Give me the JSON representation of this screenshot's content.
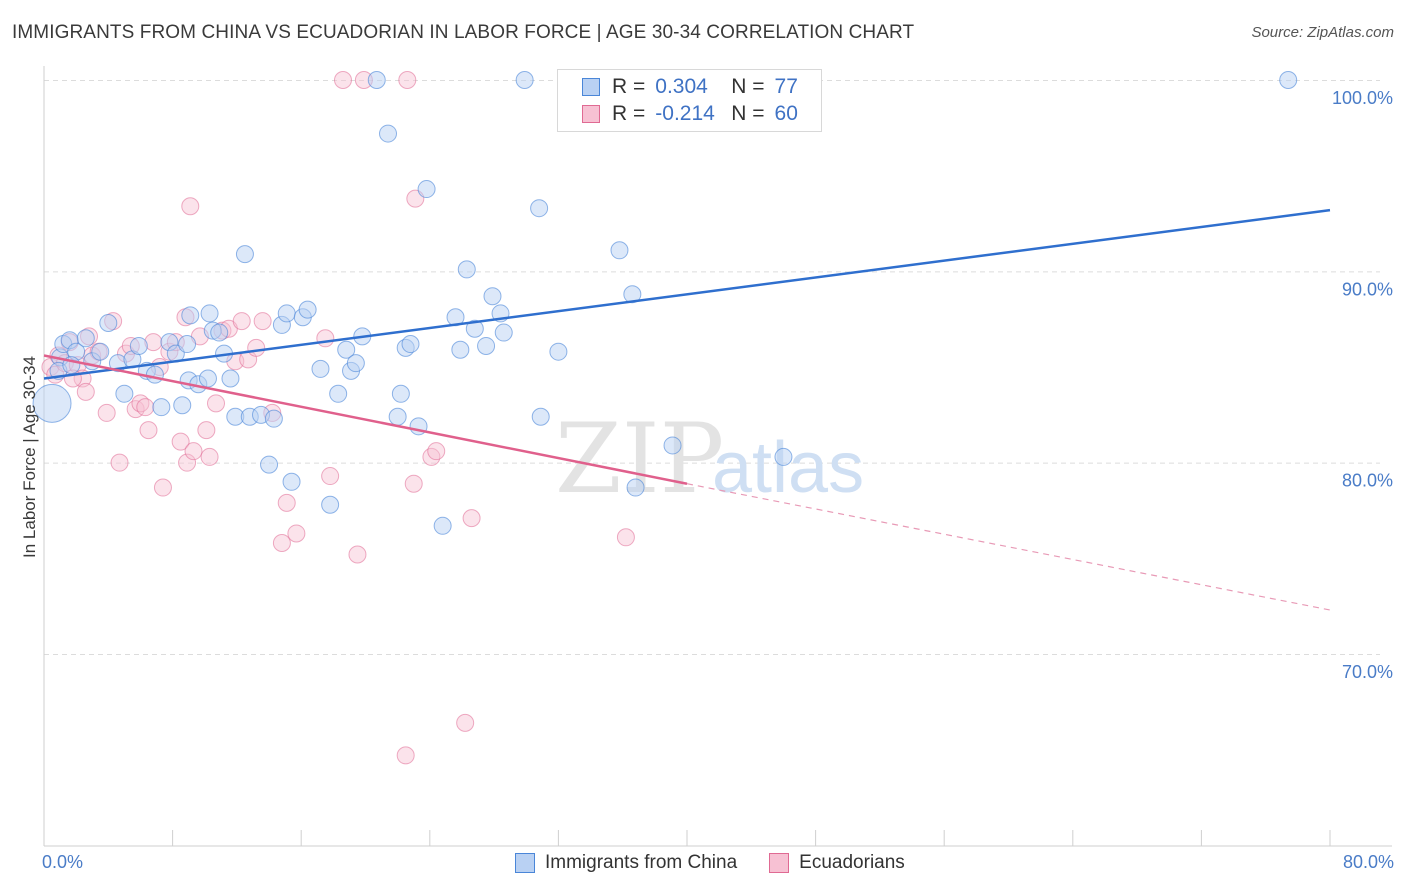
{
  "title": "IMMIGRANTS FROM CHINA VS ECUADORIAN IN LABOR FORCE | AGE 30-34 CORRELATION CHART",
  "source": "Source: ZipAtlas.com",
  "watermark": {
    "zip": "ZIP",
    "atlas": "atlas"
  },
  "legend": {
    "r_label": "R =",
    "n_label": "N =",
    "rows": [
      {
        "r": "0.304",
        "n": "77"
      },
      {
        "r": "-0.214",
        "n": "60"
      }
    ]
  },
  "colors": {
    "china": "#4a86d8",
    "china_fill": "#b9d1f3",
    "ecuador": "#e06a93",
    "ecuador_fill": "#f7c1d3",
    "grid": "#dcdcdc",
    "tick_label": "#4a7cc7"
  },
  "chart_data": {
    "type": "scatter",
    "title": "IMMIGRANTS FROM CHINA VS ECUADORIAN IN LABOR FORCE | AGE 30-34 CORRELATION CHART",
    "xlabel": "",
    "ylabel": "In Labor Force | Age 30-34",
    "xlim": [
      0,
      80
    ],
    "ylim": [
      60,
      104
    ],
    "x_tick_labels": [
      "0.0%",
      "80.0%"
    ],
    "y_ticks": [
      70,
      80,
      90,
      100
    ],
    "y_tick_labels": [
      "70.0%",
      "80.0%",
      "90.0%",
      "100.0%"
    ],
    "grid": true,
    "legend_position": "bottom",
    "series": [
      {
        "name": "Immigrants from China",
        "r": 0.304,
        "n": 77,
        "trend": {
          "x": [
            0,
            80
          ],
          "y": [
            84.4,
            93.2
          ]
        },
        "points": [
          [
            0.5,
            83.1
          ],
          [
            1.0,
            85.5
          ],
          [
            1.2,
            86.2
          ],
          [
            1.6,
            86.4
          ],
          [
            2.0,
            85.8
          ],
          [
            2.6,
            86.5
          ],
          [
            3.0,
            85.3
          ],
          [
            3.5,
            85.8
          ],
          [
            4.0,
            87.3
          ],
          [
            4.6,
            85.2
          ],
          [
            5.0,
            83.6
          ],
          [
            5.5,
            85.4
          ],
          [
            5.9,
            86.1
          ],
          [
            6.4,
            84.8
          ],
          [
            6.9,
            84.6
          ],
          [
            7.3,
            82.9
          ],
          [
            7.8,
            86.3
          ],
          [
            8.2,
            85.7
          ],
          [
            8.6,
            83.0
          ],
          [
            8.9,
            86.2
          ],
          [
            9.0,
            84.3
          ],
          [
            9.1,
            87.7
          ],
          [
            9.6,
            84.1
          ],
          [
            10.2,
            84.4
          ],
          [
            10.3,
            87.8
          ],
          [
            10.5,
            86.9
          ],
          [
            10.9,
            86.8
          ],
          [
            11.2,
            85.7
          ],
          [
            11.6,
            84.4
          ],
          [
            11.9,
            82.4
          ],
          [
            12.5,
            90.9
          ],
          [
            12.8,
            82.4
          ],
          [
            13.5,
            82.5
          ],
          [
            14.0,
            79.9
          ],
          [
            14.3,
            82.3
          ],
          [
            14.8,
            87.2
          ],
          [
            15.1,
            87.8
          ],
          [
            15.4,
            79.0
          ],
          [
            16.1,
            87.6
          ],
          [
            16.4,
            88.0
          ],
          [
            17.2,
            84.9
          ],
          [
            17.8,
            77.8
          ],
          [
            18.3,
            83.6
          ],
          [
            18.8,
            85.9
          ],
          [
            19.1,
            84.8
          ],
          [
            19.4,
            85.2
          ],
          [
            19.8,
            86.6
          ],
          [
            20.7,
            100.0
          ],
          [
            21.4,
            97.2
          ],
          [
            22.0,
            82.4
          ],
          [
            22.2,
            83.6
          ],
          [
            22.5,
            86.0
          ],
          [
            22.8,
            86.2
          ],
          [
            23.3,
            81.9
          ],
          [
            23.8,
            94.3
          ],
          [
            24.8,
            76.7
          ],
          [
            25.6,
            87.6
          ],
          [
            25.9,
            85.9
          ],
          [
            26.3,
            90.1
          ],
          [
            26.8,
            87.0
          ],
          [
            27.5,
            86.1
          ],
          [
            27.9,
            88.7
          ],
          [
            28.4,
            87.8
          ],
          [
            28.6,
            86.8
          ],
          [
            29.9,
            100.0
          ],
          [
            30.8,
            93.3
          ],
          [
            30.9,
            82.4
          ],
          [
            32.0,
            85.8
          ],
          [
            33.1,
            100.0
          ],
          [
            35.8,
            91.1
          ],
          [
            36.6,
            88.8
          ],
          [
            36.8,
            78.7
          ],
          [
            39.1,
            80.9
          ],
          [
            46.0,
            80.3
          ],
          [
            77.4,
            100.0
          ],
          [
            0.9,
            84.8
          ],
          [
            1.7,
            85.1
          ]
        ]
      },
      {
        "name": "Ecuadorians",
        "r": -0.214,
        "n": 60,
        "trend": {
          "x": [
            0,
            40
          ],
          "y": [
            85.6,
            78.9
          ]
        },
        "trend_extension": {
          "x": [
            40,
            80
          ],
          "y": [
            78.9,
            72.3
          ]
        },
        "points": [
          [
            0.4,
            85.0
          ],
          [
            0.7,
            84.6
          ],
          [
            0.9,
            85.6
          ],
          [
            1.3,
            85.2
          ],
          [
            1.6,
            86.3
          ],
          [
            2.1,
            85.1
          ],
          [
            2.4,
            84.4
          ],
          [
            2.6,
            83.7
          ],
          [
            2.8,
            86.6
          ],
          [
            3.0,
            85.6
          ],
          [
            3.4,
            85.8
          ],
          [
            3.9,
            82.6
          ],
          [
            4.3,
            87.4
          ],
          [
            4.7,
            80.0
          ],
          [
            5.1,
            85.7
          ],
          [
            5.4,
            86.1
          ],
          [
            5.7,
            82.8
          ],
          [
            6.0,
            83.1
          ],
          [
            6.3,
            82.9
          ],
          [
            6.5,
            81.7
          ],
          [
            6.8,
            86.3
          ],
          [
            7.2,
            85.0
          ],
          [
            7.4,
            78.7
          ],
          [
            7.8,
            85.8
          ],
          [
            8.2,
            86.3
          ],
          [
            8.5,
            81.1
          ],
          [
            8.8,
            87.6
          ],
          [
            8.9,
            80.0
          ],
          [
            9.1,
            93.4
          ],
          [
            9.3,
            80.6
          ],
          [
            9.7,
            86.6
          ],
          [
            10.1,
            81.7
          ],
          [
            10.3,
            80.3
          ],
          [
            10.7,
            83.1
          ],
          [
            11.1,
            86.9
          ],
          [
            11.5,
            87.0
          ],
          [
            11.9,
            85.3
          ],
          [
            12.3,
            87.4
          ],
          [
            12.7,
            85.4
          ],
          [
            13.2,
            86.0
          ],
          [
            13.6,
            87.4
          ],
          [
            14.2,
            82.6
          ],
          [
            14.8,
            75.8
          ],
          [
            15.1,
            77.9
          ],
          [
            15.7,
            76.3
          ],
          [
            17.5,
            86.5
          ],
          [
            17.8,
            79.3
          ],
          [
            19.5,
            75.2
          ],
          [
            18.6,
            100.0
          ],
          [
            19.9,
            100.0
          ],
          [
            22.6,
            100.0
          ],
          [
            23.0,
            78.9
          ],
          [
            23.1,
            93.8
          ],
          [
            24.1,
            80.3
          ],
          [
            24.4,
            80.6
          ],
          [
            26.6,
            77.1
          ],
          [
            26.2,
            66.4
          ],
          [
            22.5,
            64.7
          ],
          [
            36.2,
            76.1
          ],
          [
            1.8,
            84.4
          ]
        ]
      }
    ]
  }
}
